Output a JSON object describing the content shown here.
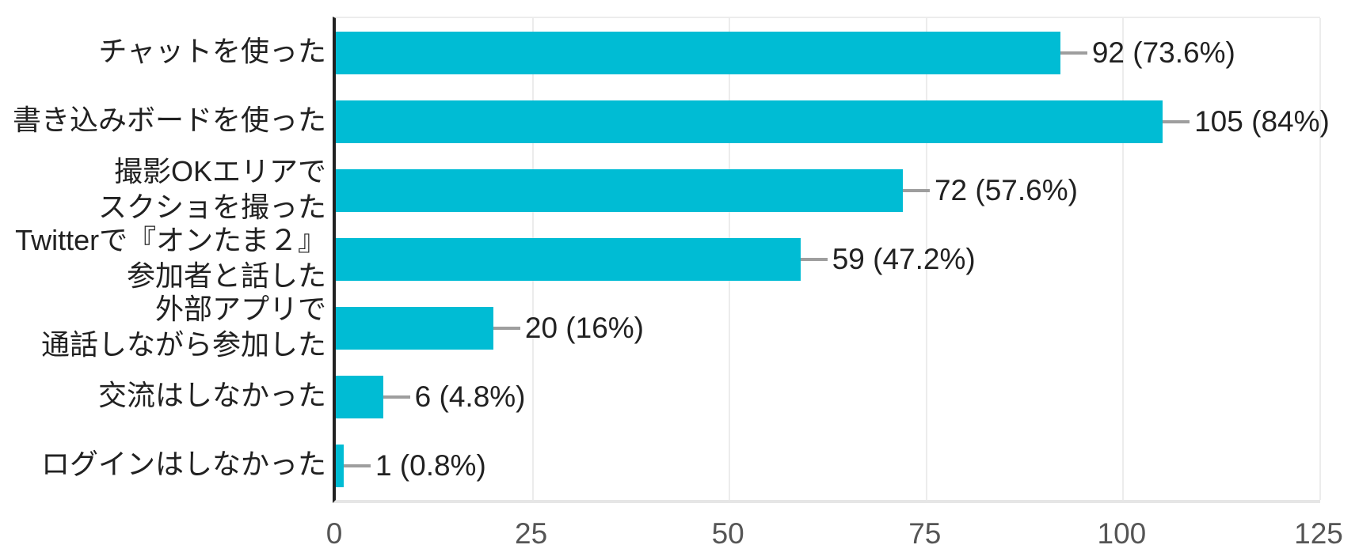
{
  "chart_data": {
    "type": "bar",
    "orientation": "horizontal",
    "title": "",
    "categories": [
      [
        "チャットを使った"
      ],
      [
        "書き込みボードを使った"
      ],
      [
        "撮影OKエリアで",
        "スクショを撮った"
      ],
      [
        "Twitterで『オンたま２』",
        "参加者と話した"
      ],
      [
        "外部アプリで",
        "通話しながら参加した"
      ],
      [
        "交流はしなかった"
      ],
      [
        "ログインはしなかった"
      ]
    ],
    "values": [
      92,
      105,
      72,
      59,
      20,
      6,
      1
    ],
    "value_labels": [
      "92 (73.6%)",
      "105 (84%)",
      "72 (57.6%)",
      "59 (47.2%)",
      "20 (16%)",
      "6 (4.8%)",
      "1 (0.8%)"
    ],
    "x_ticks": [
      "0",
      "25",
      "50",
      "75",
      "100",
      "125"
    ],
    "x_tick_values": [
      0,
      25,
      50,
      75,
      100,
      125
    ],
    "xlim": [
      0,
      125
    ],
    "xlabel": "",
    "ylabel": "",
    "grid": true,
    "legend": "none",
    "colors": {
      "bar": "#00BCD4",
      "axis_line": "#212121",
      "gridline": "#ececec",
      "plot_bottom_border": "#e6e6e6",
      "leader_line": "#9e9e9e",
      "value_label": "#212121",
      "category_label": "#212121",
      "tick_label": "#555555",
      "background": "#ffffff"
    }
  }
}
